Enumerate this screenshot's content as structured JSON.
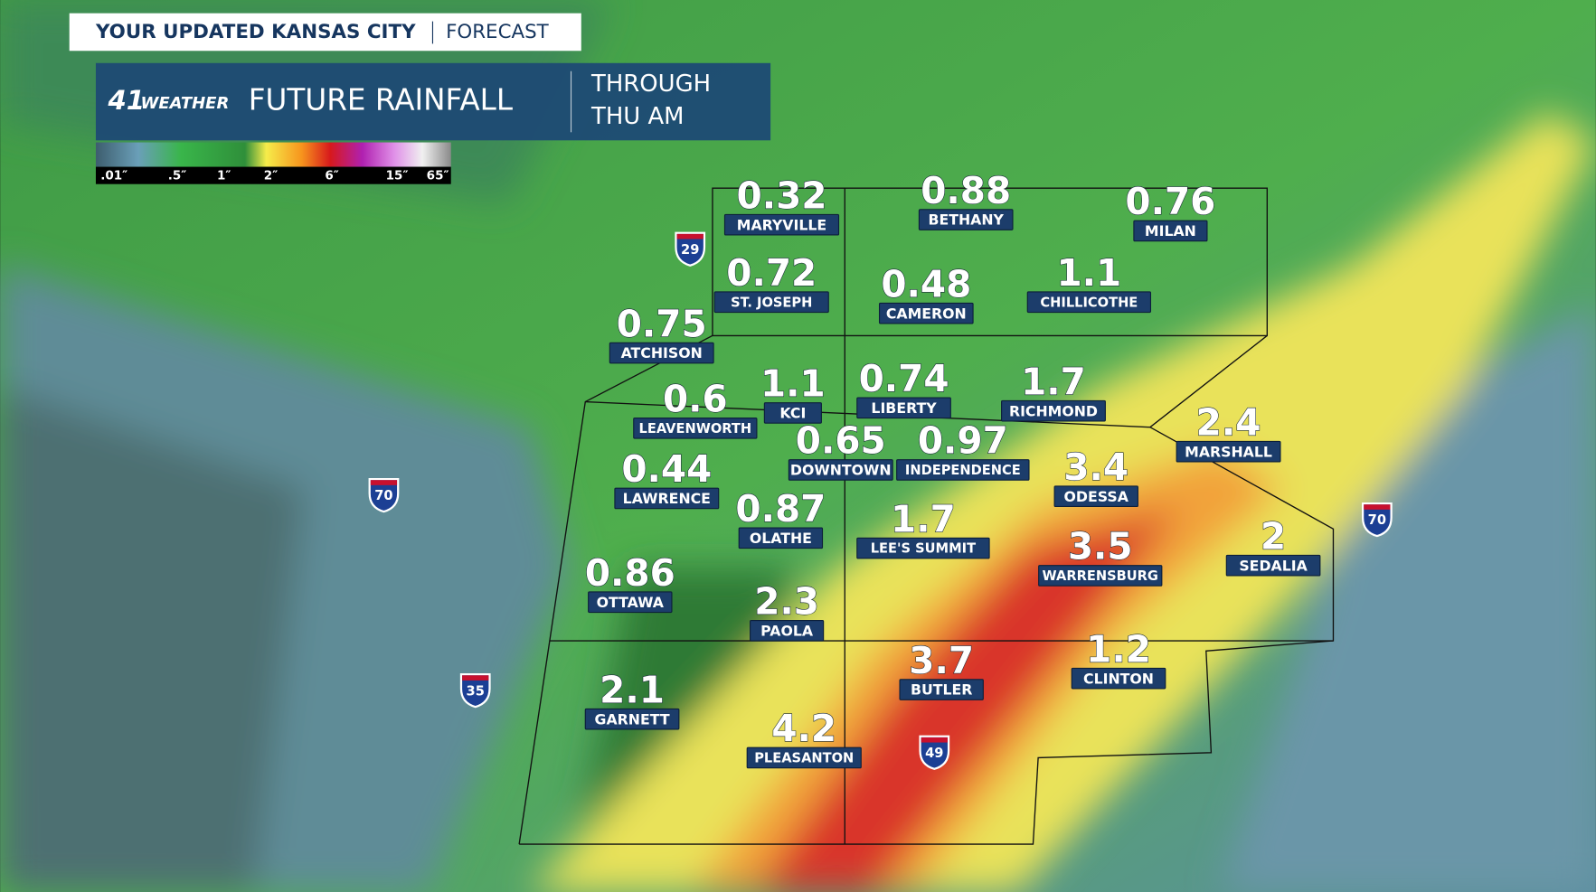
{
  "header": {
    "kicker": "YOUR UPDATED KANSAS CITY",
    "kicker_tag": "FORECAST",
    "logo_number": "41",
    "logo_text": "WEATHER",
    "title": "FUTURE RAINFALL",
    "period_line1": "THROUGH",
    "period_line2": "THU AM"
  },
  "legend": {
    "labels": [
      ".01″",
      ".5″",
      "1″",
      "2″",
      "6″",
      "15″",
      "65″"
    ]
  },
  "cities": [
    {
      "name": "MARYVILLE",
      "value": 0.32
    },
    {
      "name": "BETHANY",
      "value": 0.88
    },
    {
      "name": "MILAN",
      "value": 0.76
    },
    {
      "name": "ST. JOSEPH",
      "value": 0.72
    },
    {
      "name": "CAMERON",
      "value": 0.48
    },
    {
      "name": "CHILLICOTHE",
      "value": 1.1
    },
    {
      "name": "ATCHISON",
      "value": 0.75
    },
    {
      "name": "KCI",
      "value": 1.1
    },
    {
      "name": "LIBERTY",
      "value": 0.74
    },
    {
      "name": "RICHMOND",
      "value": 1.7
    },
    {
      "name": "LEAVENWORTH",
      "value": 0.6
    },
    {
      "name": "DOWNTOWN",
      "value": 0.65
    },
    {
      "name": "INDEPENDENCE",
      "value": 0.97
    },
    {
      "name": "MARSHALL",
      "value": 2.4
    },
    {
      "name": "LAWRENCE",
      "value": 0.44
    },
    {
      "name": "ODESSA",
      "value": 3.4
    },
    {
      "name": "OLATHE",
      "value": 0.87
    },
    {
      "name": "LEE'S SUMMIT",
      "value": 1.7
    },
    {
      "name": "WARRENSBURG",
      "value": 3.5
    },
    {
      "name": "SEDALIA",
      "value": 2
    },
    {
      "name": "OTTAWA",
      "value": 0.86
    },
    {
      "name": "PAOLA",
      "value": 2.3
    },
    {
      "name": "BUTLER",
      "value": 3.7
    },
    {
      "name": "CLINTON",
      "value": 1.2
    },
    {
      "name": "GARNETT",
      "value": 2.1
    },
    {
      "name": "PLEASANTON",
      "value": 4.2
    }
  ],
  "interstates": [
    "29",
    "70",
    "70",
    "35",
    "49"
  ]
}
